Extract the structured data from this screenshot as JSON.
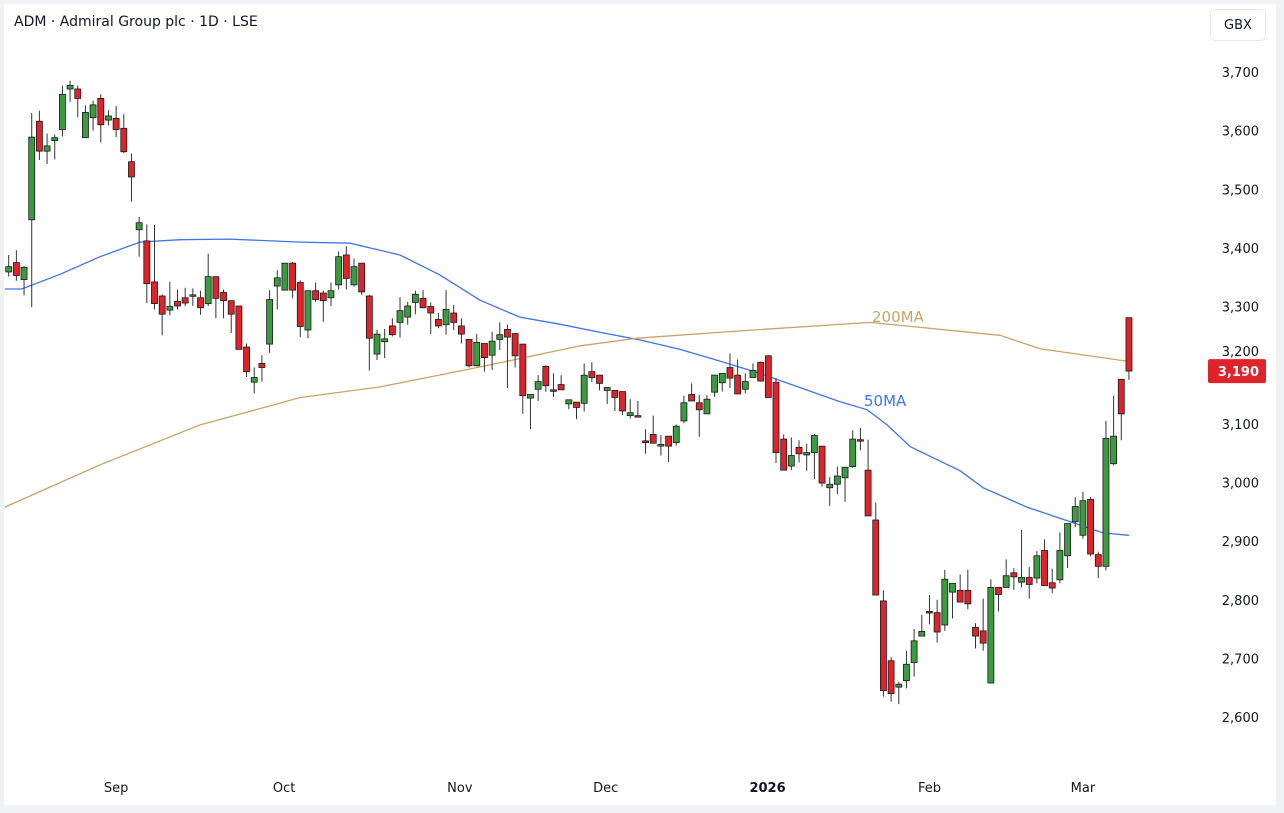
{
  "header": {
    "title": "ADM · Admiral Group plc · 1D · LSE",
    "currency_button": "GBX"
  },
  "colors": {
    "up": "#3c9a40",
    "down": "#e0232b",
    "ma50": "#3d74f0",
    "ma200": "#c9a36b",
    "last_price_bg": "#e0232b"
  },
  "chart_data": {
    "type": "candlestick",
    "title": "ADM · Admiral Group plc · 1D · LSE",
    "ylabel": "GBX",
    "ylim": [
      2545,
      3765
    ],
    "yticks": [
      {
        "v": 3700,
        "label": "3,700"
      },
      {
        "v": 3600,
        "label": "3,600"
      },
      {
        "v": 3500,
        "label": "3,500"
      },
      {
        "v": 3400,
        "label": "3,400"
      },
      {
        "v": 3300,
        "label": "3,300"
      },
      {
        "v": 3200,
        "label": "3,200"
      },
      {
        "v": 3100,
        "label": "3,100"
      },
      {
        "v": 3000,
        "label": "3,000"
      },
      {
        "v": 2900,
        "label": "2,900"
      },
      {
        "v": 2800,
        "label": "2,800"
      },
      {
        "v": 2700,
        "label": "2,700"
      },
      {
        "v": 2600,
        "label": "2,600"
      }
    ],
    "xticks": [
      {
        "i": 14,
        "label": "Sep"
      },
      {
        "i": 35.9,
        "label": "Oct"
      },
      {
        "i": 58.8,
        "label": "Nov"
      },
      {
        "i": 77.8,
        "label": "Dec"
      },
      {
        "i": 98.9,
        "label": "2026",
        "bold": true
      },
      {
        "i": 120,
        "label": "Feb"
      },
      {
        "i": 140,
        "label": "Mar"
      }
    ],
    "last_price": {
      "value": 3190,
      "label": "3,190"
    },
    "ohlc": [
      [
        3359,
        3388,
        3351,
        3368
      ],
      [
        3375,
        3396,
        3344,
        3353
      ],
      [
        3346,
        3369,
        3319,
        3367
      ],
      [
        3448,
        3630,
        3299,
        3589
      ],
      [
        3616,
        3634,
        3550,
        3565
      ],
      [
        3565,
        3595,
        3543,
        3574
      ],
      [
        3583,
        3593,
        3551,
        3588
      ],
      [
        3602,
        3677,
        3590,
        3662
      ],
      [
        3671,
        3685,
        3649,
        3677
      ],
      [
        3671,
        3677,
        3623,
        3655
      ],
      [
        3588,
        3643,
        3588,
        3631
      ],
      [
        3622,
        3651,
        3600,
        3644
      ],
      [
        3655,
        3662,
        3580,
        3610
      ],
      [
        3618,
        3635,
        3609,
        3625
      ],
      [
        3621,
        3642,
        3589,
        3602
      ],
      [
        3604,
        3628,
        3562,
        3564
      ],
      [
        3547,
        3561,
        3479,
        3521
      ],
      [
        3431,
        3453,
        3385,
        3443
      ],
      [
        3412,
        3440,
        3306,
        3339
      ],
      [
        3342,
        3439,
        3295,
        3305
      ],
      [
        3318,
        3321,
        3251,
        3287
      ],
      [
        3294,
        3342,
        3285,
        3300
      ],
      [
        3309,
        3329,
        3295,
        3301
      ],
      [
        3315,
        3332,
        3301,
        3306
      ],
      [
        3320,
        3331,
        3301,
        3320
      ],
      [
        3315,
        3327,
        3286,
        3298
      ],
      [
        3305,
        3390,
        3301,
        3351
      ],
      [
        3351,
        3351,
        3280,
        3314
      ],
      [
        3324,
        3329,
        3280,
        3310
      ],
      [
        3310,
        3310,
        3255,
        3287
      ],
      [
        3301,
        3301,
        3227,
        3227
      ],
      [
        3231,
        3237,
        3180,
        3189
      ],
      [
        3171,
        3196,
        3152,
        3179
      ],
      [
        3203,
        3217,
        3172,
        3196
      ],
      [
        3236,
        3328,
        3221,
        3312
      ],
      [
        3335,
        3362,
        3295,
        3349
      ],
      [
        3328,
        3374,
        3328,
        3374
      ],
      [
        3374,
        3376,
        3314,
        3328
      ],
      [
        3341,
        3345,
        3248,
        3266
      ],
      [
        3260,
        3327,
        3246,
        3327
      ],
      [
        3327,
        3341,
        3308,
        3312
      ],
      [
        3323,
        3327,
        3274,
        3310
      ],
      [
        3315,
        3341,
        3301,
        3327
      ],
      [
        3337,
        3394,
        3329,
        3385
      ],
      [
        3388,
        3403,
        3329,
        3348
      ],
      [
        3337,
        3382,
        3334,
        3368
      ],
      [
        3374,
        3374,
        3320,
        3325
      ],
      [
        3318,
        3320,
        3191,
        3246
      ],
      [
        3219,
        3260,
        3209,
        3253
      ],
      [
        3240,
        3262,
        3212,
        3245
      ],
      [
        3267,
        3280,
        3249,
        3252
      ],
      [
        3273,
        3316,
        3247,
        3293
      ],
      [
        3282,
        3308,
        3269,
        3301
      ],
      [
        3307,
        3327,
        3287,
        3321
      ],
      [
        3314,
        3328,
        3297,
        3298
      ],
      [
        3300,
        3307,
        3253,
        3289
      ],
      [
        3278,
        3289,
        3263,
        3267
      ],
      [
        3269,
        3328,
        3252,
        3295
      ],
      [
        3289,
        3303,
        3260,
        3273
      ],
      [
        3267,
        3280,
        3237,
        3253
      ],
      [
        3244,
        3244,
        3196,
        3199
      ],
      [
        3199,
        3253,
        3198,
        3239
      ],
      [
        3237,
        3237,
        3189,
        3213
      ],
      [
        3217,
        3257,
        3192,
        3241
      ],
      [
        3244,
        3273,
        3226,
        3252
      ],
      [
        3261,
        3269,
        3161,
        3248
      ],
      [
        3254,
        3254,
        3196,
        3216
      ],
      [
        3236,
        3236,
        3117,
        3148
      ],
      [
        3144,
        3150,
        3091,
        3150
      ],
      [
        3159,
        3183,
        3139,
        3172
      ],
      [
        3198,
        3200,
        3155,
        3165
      ],
      [
        3158,
        3186,
        3146,
        3157
      ],
      [
        3167,
        3183,
        3158,
        3158
      ],
      [
        3134,
        3141,
        3125,
        3141
      ],
      [
        3137,
        3137,
        3108,
        3128
      ],
      [
        3135,
        3203,
        3121,
        3183
      ],
      [
        3189,
        3205,
        3171,
        3179
      ],
      [
        3183,
        3183,
        3157,
        3169
      ],
      [
        3157,
        3162,
        3134,
        3162
      ],
      [
        3157,
        3157,
        3122,
        3145
      ],
      [
        3155,
        3155,
        3115,
        3122
      ],
      [
        3114,
        3142,
        3109,
        3119
      ],
      [
        3114,
        3139,
        3112,
        3113
      ],
      [
        3071,
        3091,
        3049,
        3068
      ],
      [
        3082,
        3114,
        3067,
        3067
      ],
      [
        3062,
        3081,
        3046,
        3065
      ],
      [
        3079,
        3079,
        3035,
        3062
      ],
      [
        3068,
        3099,
        3063,
        3096
      ],
      [
        3105,
        3148,
        3101,
        3136
      ],
      [
        3150,
        3169,
        3139,
        3139
      ],
      [
        3136,
        3149,
        3078,
        3124
      ],
      [
        3117,
        3149,
        3117,
        3142
      ],
      [
        3154,
        3183,
        3146,
        3183
      ],
      [
        3170,
        3186,
        3155,
        3186
      ],
      [
        3196,
        3220,
        3161,
        3178
      ],
      [
        3183,
        3210,
        3151,
        3151
      ],
      [
        3159,
        3186,
        3152,
        3172
      ],
      [
        3179,
        3203,
        3179,
        3191
      ],
      [
        3205,
        3206,
        3172,
        3173
      ],
      [
        3216,
        3217,
        3145,
        3145
      ],
      [
        3171,
        3178,
        3033,
        3051
      ],
      [
        3074,
        3082,
        3021,
        3021
      ],
      [
        3028,
        3077,
        3021,
        3046
      ],
      [
        3060,
        3072,
        3034,
        3049
      ],
      [
        3047,
        3066,
        3020,
        3051
      ],
      [
        3051,
        3083,
        3006,
        3080
      ],
      [
        3062,
        3062,
        2993,
        2999
      ],
      [
        2991,
        3009,
        2960,
        2997
      ],
      [
        2997,
        3027,
        2980,
        3011
      ],
      [
        3008,
        3026,
        2967,
        3026
      ],
      [
        3027,
        3089,
        3025,
        3074
      ],
      [
        3073,
        3093,
        3055,
        3072
      ],
      [
        3021,
        3073,
        2943,
        2943
      ],
      [
        2936,
        2966,
        2808,
        2808
      ],
      [
        2798,
        2816,
        2635,
        2645
      ],
      [
        2696,
        2702,
        2626,
        2640
      ],
      [
        2651,
        2660,
        2622,
        2656
      ],
      [
        2662,
        2713,
        2649,
        2690
      ],
      [
        2693,
        2750,
        2669,
        2730
      ],
      [
        2738,
        2774,
        2738,
        2746
      ],
      [
        2780,
        2808,
        2758,
        2779
      ],
      [
        2778,
        2800,
        2727,
        2745
      ],
      [
        2757,
        2851,
        2747,
        2835
      ],
      [
        2813,
        2828,
        2768,
        2828
      ],
      [
        2816,
        2843,
        2796,
        2796
      ],
      [
        2816,
        2851,
        2784,
        2793
      ],
      [
        2753,
        2760,
        2717,
        2738
      ],
      [
        2747,
        2802,
        2713,
        2726
      ],
      [
        2658,
        2835,
        2658,
        2821
      ],
      [
        2821,
        2821,
        2780,
        2809
      ],
      [
        2821,
        2869,
        2821,
        2841
      ],
      [
        2846,
        2854,
        2817,
        2839
      ],
      [
        2830,
        2919,
        2821,
        2838
      ],
      [
        2838,
        2856,
        2802,
        2826
      ],
      [
        2837,
        2883,
        2828,
        2875
      ],
      [
        2884,
        2903,
        2824,
        2824
      ],
      [
        2829,
        2853,
        2811,
        2820
      ],
      [
        2834,
        2915,
        2828,
        2884
      ],
      [
        2875,
        2930,
        2854,
        2930
      ],
      [
        2933,
        2975,
        2924,
        2959
      ],
      [
        2910,
        2984,
        2904,
        2969
      ],
      [
        2971,
        2975,
        2874,
        2878
      ],
      [
        2877,
        2882,
        2837,
        2857
      ],
      [
        2857,
        3105,
        2850,
        3075
      ],
      [
        3032,
        3148,
        3029,
        3079
      ],
      [
        3176,
        3176,
        3072,
        3117
      ],
      [
        3281,
        3281,
        3175,
        3190
      ]
    ],
    "series": [
      {
        "name": "50MA",
        "label": "50MA",
        "points": [
          [
            -0.5,
            3330
          ],
          [
            1.7,
            3330
          ],
          [
            6.7,
            3355
          ],
          [
            11.9,
            3385
          ],
          [
            17.1,
            3410
          ],
          [
            22.3,
            3414
          ],
          [
            28.8,
            3415
          ],
          [
            38,
            3410
          ],
          [
            44.5,
            3408
          ],
          [
            51,
            3388
          ],
          [
            56.2,
            3354
          ],
          [
            61.4,
            3311
          ],
          [
            66.6,
            3282
          ],
          [
            71.8,
            3270
          ],
          [
            77.1,
            3256
          ],
          [
            82.3,
            3243
          ],
          [
            87.5,
            3227
          ],
          [
            92.7,
            3207
          ],
          [
            97.9,
            3186
          ],
          [
            103.1,
            3162
          ],
          [
            108.3,
            3138
          ],
          [
            111.9,
            3124
          ],
          [
            114.5,
            3098
          ],
          [
            117.5,
            3061
          ],
          [
            124,
            3020
          ],
          [
            127,
            2991
          ],
          [
            132.7,
            2958
          ],
          [
            137,
            2939
          ],
          [
            142.6,
            2914
          ],
          [
            146,
            2910
          ]
        ]
      },
      {
        "name": "200MA",
        "label": "200MA",
        "points": [
          [
            -0.5,
            2958
          ],
          [
            11.9,
            3030
          ],
          [
            24.9,
            3098
          ],
          [
            38,
            3145
          ],
          [
            48.4,
            3163
          ],
          [
            61.4,
            3197
          ],
          [
            74.5,
            3233
          ],
          [
            81.9,
            3246
          ],
          [
            97,
            3260
          ],
          [
            112.3,
            3273
          ],
          [
            129.2,
            3251
          ],
          [
            134.4,
            3228
          ],
          [
            145.7,
            3207
          ]
        ]
      }
    ]
  }
}
